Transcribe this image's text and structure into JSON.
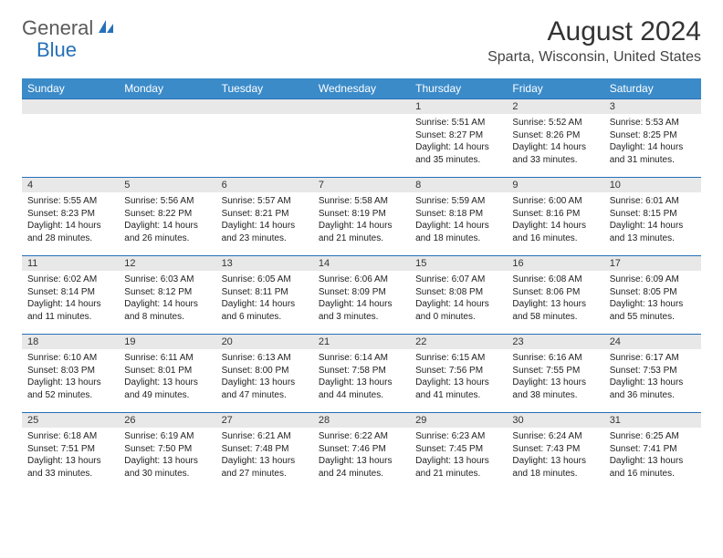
{
  "logo": {
    "text1": "General",
    "text2": "Blue"
  },
  "title": "August 2024",
  "location": "Sparta, Wisconsin, United States",
  "colors": {
    "header_bg": "#3b8bc9",
    "header_text": "#ffffff",
    "daynum_bg": "#e8e8e8",
    "border": "#2670b8",
    "logo_gray": "#5a5a5a",
    "logo_blue": "#2670b8"
  },
  "day_names": [
    "Sunday",
    "Monday",
    "Tuesday",
    "Wednesday",
    "Thursday",
    "Friday",
    "Saturday"
  ],
  "weeks": [
    [
      null,
      null,
      null,
      null,
      {
        "d": "1",
        "sr": "5:51 AM",
        "ss": "8:27 PM",
        "dl": "14 hours and 35 minutes."
      },
      {
        "d": "2",
        "sr": "5:52 AM",
        "ss": "8:26 PM",
        "dl": "14 hours and 33 minutes."
      },
      {
        "d": "3",
        "sr": "5:53 AM",
        "ss": "8:25 PM",
        "dl": "14 hours and 31 minutes."
      }
    ],
    [
      {
        "d": "4",
        "sr": "5:55 AM",
        "ss": "8:23 PM",
        "dl": "14 hours and 28 minutes."
      },
      {
        "d": "5",
        "sr": "5:56 AM",
        "ss": "8:22 PM",
        "dl": "14 hours and 26 minutes."
      },
      {
        "d": "6",
        "sr": "5:57 AM",
        "ss": "8:21 PM",
        "dl": "14 hours and 23 minutes."
      },
      {
        "d": "7",
        "sr": "5:58 AM",
        "ss": "8:19 PM",
        "dl": "14 hours and 21 minutes."
      },
      {
        "d": "8",
        "sr": "5:59 AM",
        "ss": "8:18 PM",
        "dl": "14 hours and 18 minutes."
      },
      {
        "d": "9",
        "sr": "6:00 AM",
        "ss": "8:16 PM",
        "dl": "14 hours and 16 minutes."
      },
      {
        "d": "10",
        "sr": "6:01 AM",
        "ss": "8:15 PM",
        "dl": "14 hours and 13 minutes."
      }
    ],
    [
      {
        "d": "11",
        "sr": "6:02 AM",
        "ss": "8:14 PM",
        "dl": "14 hours and 11 minutes."
      },
      {
        "d": "12",
        "sr": "6:03 AM",
        "ss": "8:12 PM",
        "dl": "14 hours and 8 minutes."
      },
      {
        "d": "13",
        "sr": "6:05 AM",
        "ss": "8:11 PM",
        "dl": "14 hours and 6 minutes."
      },
      {
        "d": "14",
        "sr": "6:06 AM",
        "ss": "8:09 PM",
        "dl": "14 hours and 3 minutes."
      },
      {
        "d": "15",
        "sr": "6:07 AM",
        "ss": "8:08 PM",
        "dl": "14 hours and 0 minutes."
      },
      {
        "d": "16",
        "sr": "6:08 AM",
        "ss": "8:06 PM",
        "dl": "13 hours and 58 minutes."
      },
      {
        "d": "17",
        "sr": "6:09 AM",
        "ss": "8:05 PM",
        "dl": "13 hours and 55 minutes."
      }
    ],
    [
      {
        "d": "18",
        "sr": "6:10 AM",
        "ss": "8:03 PM",
        "dl": "13 hours and 52 minutes."
      },
      {
        "d": "19",
        "sr": "6:11 AM",
        "ss": "8:01 PM",
        "dl": "13 hours and 49 minutes."
      },
      {
        "d": "20",
        "sr": "6:13 AM",
        "ss": "8:00 PM",
        "dl": "13 hours and 47 minutes."
      },
      {
        "d": "21",
        "sr": "6:14 AM",
        "ss": "7:58 PM",
        "dl": "13 hours and 44 minutes."
      },
      {
        "d": "22",
        "sr": "6:15 AM",
        "ss": "7:56 PM",
        "dl": "13 hours and 41 minutes."
      },
      {
        "d": "23",
        "sr": "6:16 AM",
        "ss": "7:55 PM",
        "dl": "13 hours and 38 minutes."
      },
      {
        "d": "24",
        "sr": "6:17 AM",
        "ss": "7:53 PM",
        "dl": "13 hours and 36 minutes."
      }
    ],
    [
      {
        "d": "25",
        "sr": "6:18 AM",
        "ss": "7:51 PM",
        "dl": "13 hours and 33 minutes."
      },
      {
        "d": "26",
        "sr": "6:19 AM",
        "ss": "7:50 PM",
        "dl": "13 hours and 30 minutes."
      },
      {
        "d": "27",
        "sr": "6:21 AM",
        "ss": "7:48 PM",
        "dl": "13 hours and 27 minutes."
      },
      {
        "d": "28",
        "sr": "6:22 AM",
        "ss": "7:46 PM",
        "dl": "13 hours and 24 minutes."
      },
      {
        "d": "29",
        "sr": "6:23 AM",
        "ss": "7:45 PM",
        "dl": "13 hours and 21 minutes."
      },
      {
        "d": "30",
        "sr": "6:24 AM",
        "ss": "7:43 PM",
        "dl": "13 hours and 18 minutes."
      },
      {
        "d": "31",
        "sr": "6:25 AM",
        "ss": "7:41 PM",
        "dl": "13 hours and 16 minutes."
      }
    ]
  ],
  "labels": {
    "sunrise": "Sunrise:",
    "sunset": "Sunset:",
    "daylight": "Daylight:"
  }
}
